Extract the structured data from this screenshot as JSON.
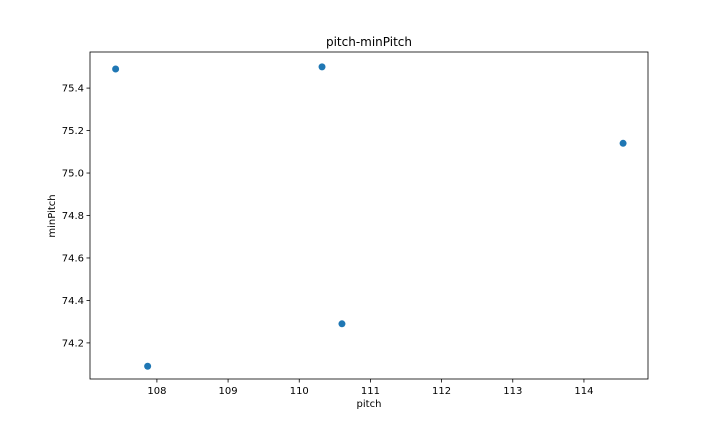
{
  "chart_data": {
    "type": "scatter",
    "title": "pitch-minPitch",
    "xlabel": "pitch",
    "ylabel": "minPitch",
    "xlim": [
      107.06,
      114.9
    ],
    "ylim": [
      74.03,
      75.57
    ],
    "xticks": [
      108,
      109,
      110,
      111,
      112,
      113,
      114
    ],
    "yticks": [
      74.2,
      74.4,
      74.6,
      74.8,
      75.0,
      75.2,
      75.4
    ],
    "xtick_labels": [
      "108",
      "109",
      "110",
      "111",
      "112",
      "113",
      "114"
    ],
    "ytick_labels": [
      "74.2",
      "74.4",
      "74.6",
      "74.8",
      "75.0",
      "75.2",
      "75.4"
    ],
    "grid": false,
    "legend": "none",
    "marker_color": "#1f77b4",
    "points": [
      {
        "x": 107.42,
        "y": 75.49
      },
      {
        "x": 110.32,
        "y": 75.5
      },
      {
        "x": 114.55,
        "y": 75.14
      },
      {
        "x": 110.6,
        "y": 74.29
      },
      {
        "x": 107.87,
        "y": 74.09
      }
    ]
  }
}
